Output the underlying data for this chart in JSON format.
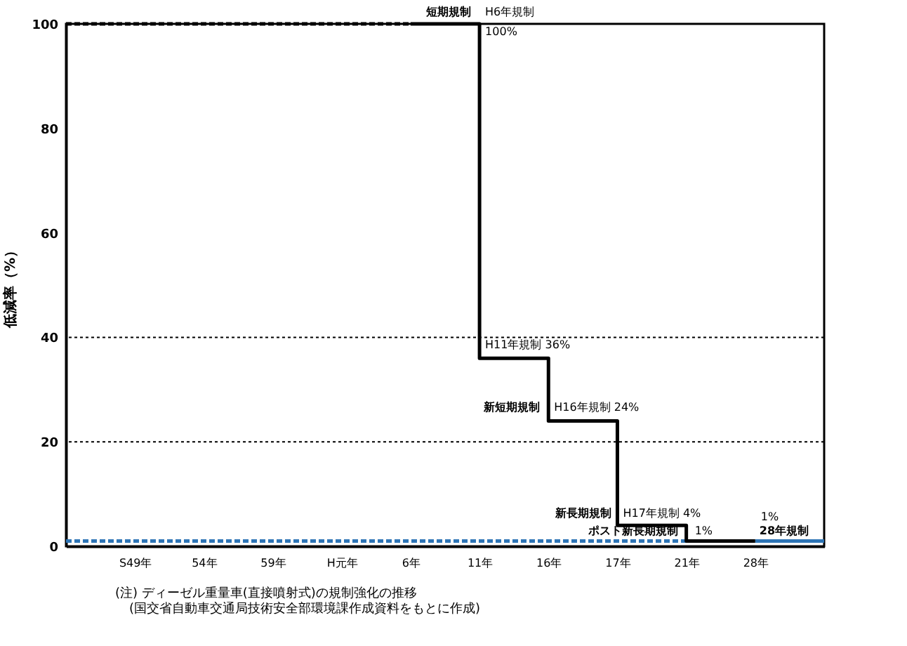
{
  "chart_data": {
    "type": "step",
    "ylabel": "低減率（%）",
    "categories": [
      null,
      "S49年",
      "54年",
      "59年",
      "H元年",
      "6年",
      "11年",
      "16年",
      "17年",
      "21年",
      "28年",
      null
    ],
    "ylim": [
      0,
      100
    ],
    "yticks": [
      0,
      20,
      40,
      60,
      80,
      100
    ],
    "series": [
      {
        "color": "#000000",
        "type": "line",
        "line_style": "dashed",
        "values": [
          100,
          100,
          100,
          100,
          100,
          100,
          null,
          null,
          null,
          null,
          null,
          null
        ]
      },
      {
        "color": "#2e75b6",
        "type": "line",
        "line_style": "dashed",
        "values": [
          1,
          1,
          1,
          1,
          1,
          1,
          1,
          1,
          1,
          1,
          null,
          null
        ]
      },
      {
        "color": "#2e75b6",
        "type": "line",
        "line_style": "solid",
        "values": [
          null,
          null,
          null,
          null,
          null,
          null,
          null,
          null,
          null,
          null,
          1,
          1
        ]
      },
      {
        "color": "#000000",
        "line_style": "solid",
        "values": [
          null,
          null,
          null,
          null,
          null,
          100,
          36,
          24,
          4,
          1,
          1,
          null
        ]
      }
    ],
    "ref_lines": [
      {
        "axis": "y",
        "value": 40,
        "color": "#000000",
        "line_style": "dotted"
      },
      {
        "axis": "y",
        "value": 20,
        "color": "#000000",
        "line_style": "dotted"
      }
    ],
    "annotations": [
      {
        "text": "短期規制",
        "x": "11年",
        "y": 100
      },
      {
        "text": "H6年規制",
        "x": "11年",
        "y": 100
      },
      {
        "text": "100%",
        "x": "11年",
        "y": 100
      },
      {
        "text": "H11年規制  36%",
        "x": "11年",
        "y": 36
      },
      {
        "text": "新短期規制",
        "x": "16年",
        "y": 24
      },
      {
        "text": "H16年規制  24%",
        "x": "16年",
        "y": 24
      },
      {
        "text": "新長期規制",
        "x": "17年",
        "y": 4
      },
      {
        "text": "H17年規制  4%",
        "x": "17年",
        "y": 4
      },
      {
        "text": "ポスト新長期規制",
        "x": "21年",
        "y": 1
      },
      {
        "text": "1%",
        "x": "21年",
        "y": 1
      },
      {
        "text": "1%",
        "x": "28年",
        "y": 1
      },
      {
        "text": "28年規制",
        "x": "28年",
        "y": 1
      },
      "(注) ディーゼル重量車(直接噴射式)の規制強化の推移",
      "(国交省自動車交通局技術安全部環境課作成資料をもとに作成)"
    ]
  }
}
